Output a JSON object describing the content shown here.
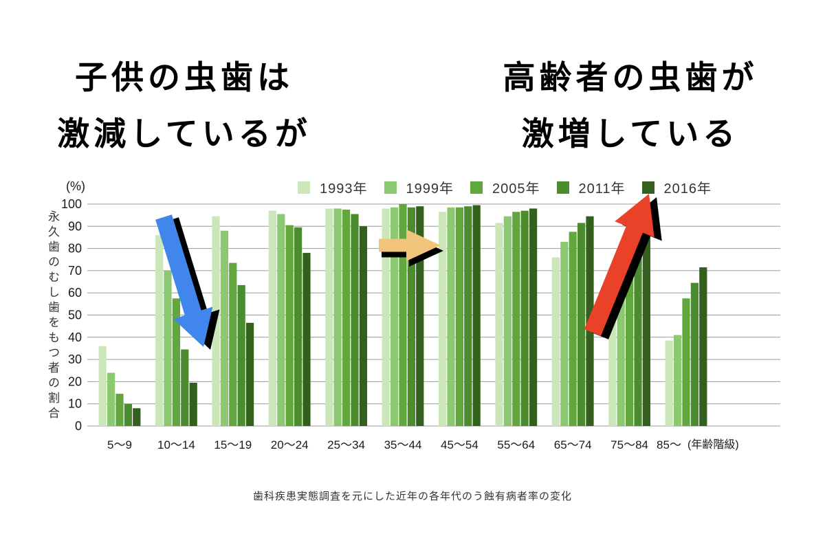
{
  "headline_left": {
    "line1": "子供の虫歯は",
    "line2": "激減しているが"
  },
  "headline_right": {
    "line1": "高齢者の虫歯が",
    "line2": "激増している"
  },
  "caption": "歯科疾患実態調査を元にした近年の各年代のう蝕有病者率の変化",
  "chart_data": {
    "type": "bar",
    "title": "",
    "unit_label": "(%)",
    "ylabel": "永久歯のむし歯をもつ者の割合",
    "xaxis_suffix": "(年齢階級)",
    "ylim": [
      0,
      100
    ],
    "ytick_step": 10,
    "grid": true,
    "legend_position": "top",
    "categories": [
      "5〜9",
      "10〜14",
      "15〜19",
      "20〜24",
      "25〜34",
      "35〜44",
      "45〜54",
      "55〜64",
      "65〜74",
      "75〜84",
      "85〜"
    ],
    "series": [
      {
        "name": "1993年",
        "color": "#cbe7ba",
        "values": [
          36,
          86,
          94.5,
          97,
          98,
          98,
          96.5,
          91.5,
          76,
          54,
          38.5
        ]
      },
      {
        "name": "1999年",
        "color": "#8cc771",
        "values": [
          24,
          70,
          88,
          95.5,
          98,
          98.5,
          98.5,
          94.5,
          83,
          64,
          41
        ]
      },
      {
        "name": "2005年",
        "color": "#61a73e",
        "values": [
          14.5,
          57.5,
          73.5,
          90.5,
          97.5,
          100,
          98.5,
          96.5,
          87.5,
          68,
          57.5
        ]
      },
      {
        "name": "2011年",
        "color": "#4b8c2f",
        "values": [
          10,
          34.5,
          63.5,
          89.5,
          95.5,
          98.5,
          99,
          97,
          91.5,
          84,
          64.5
        ]
      },
      {
        "name": "2016年",
        "color": "#33611d",
        "values": [
          8,
          19.5,
          46.5,
          78,
          90,
          99,
          99.5,
          98,
          94.5,
          87.5,
          71.5
        ]
      }
    ]
  },
  "annotations": {
    "decline_arrow": {
      "meaning": "sharp decrease in children",
      "color": "#4186ec",
      "shadow": "#000000"
    },
    "transition_arrow": {
      "meaning": "shift across middle ages",
      "color": "#f1c47c",
      "shadow": "#000000"
    },
    "surge_arrow": {
      "meaning": "sharp increase in elderly",
      "color": "#e94228",
      "shadow": "#000000"
    }
  }
}
